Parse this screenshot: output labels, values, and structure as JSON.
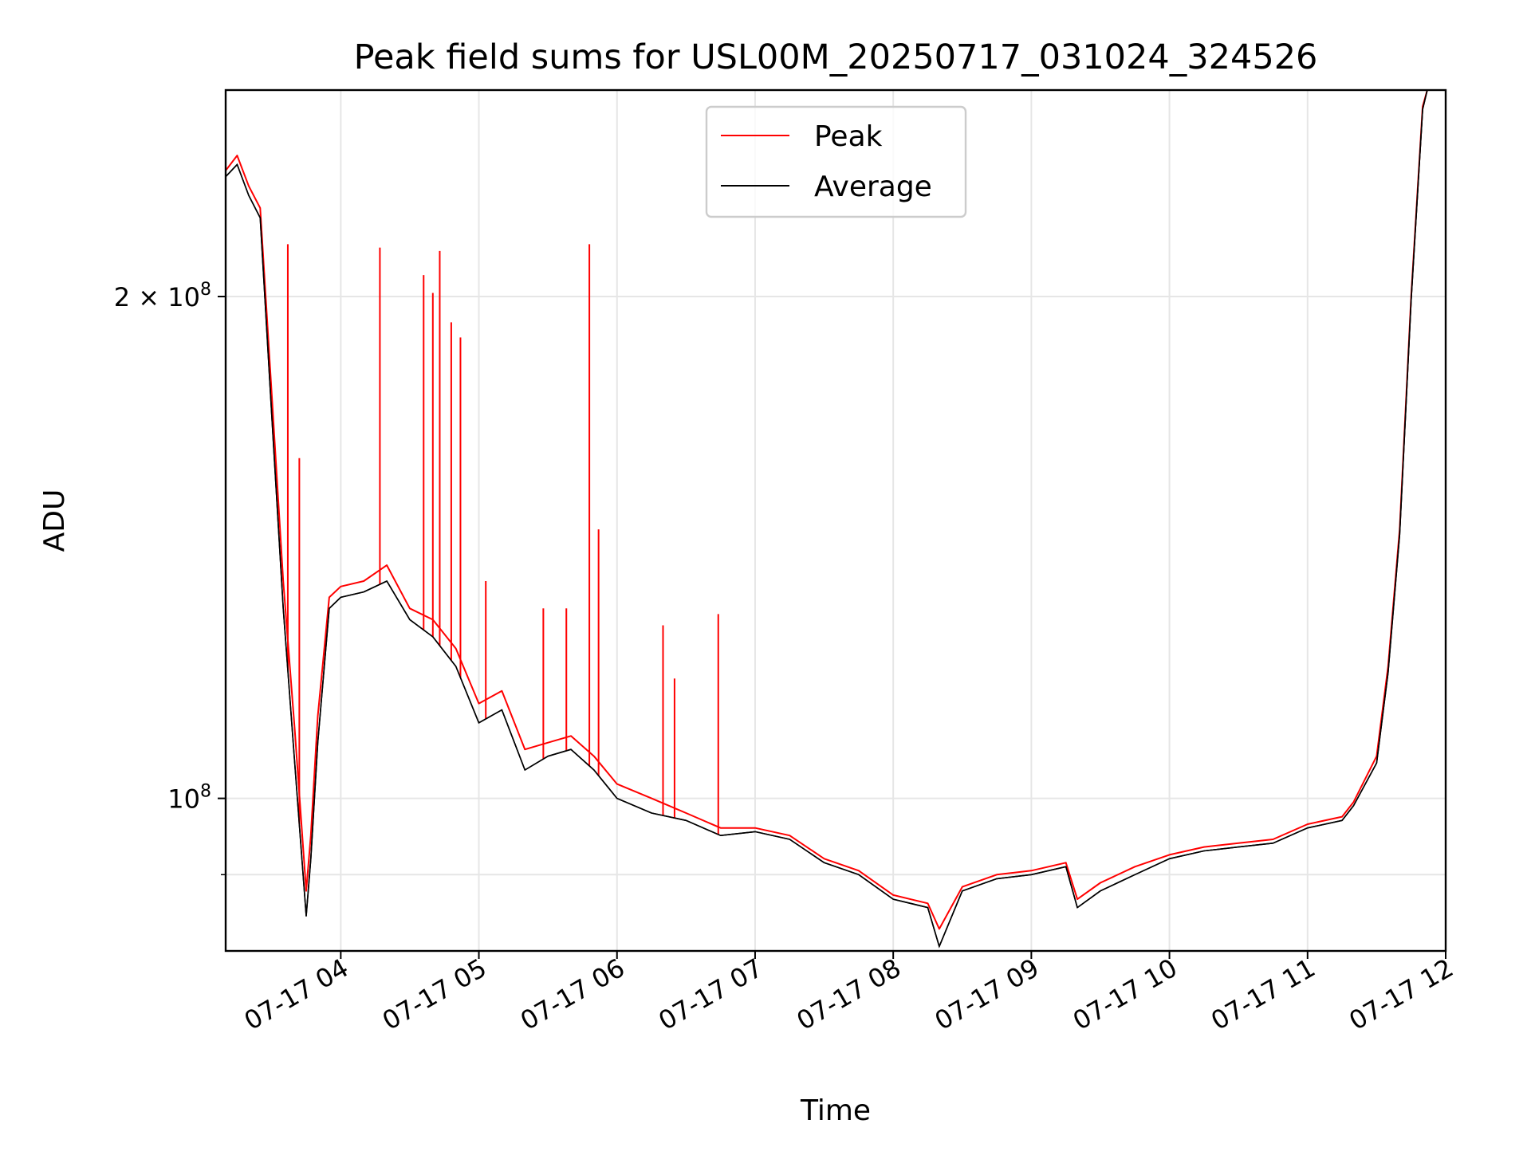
{
  "chart_data": {
    "type": "line",
    "title": "Peak field sums for USL00M_20250717_031024_324526",
    "xlabel": "Time",
    "ylabel": "ADU",
    "yscale": "log",
    "xlim": [
      "07-17 03:10",
      "07-17 12:00"
    ],
    "ylim": [
      81000000,
      266000000
    ],
    "grid": true,
    "legend_position": "top-center",
    "x_ticks": [
      "07-17 04",
      "07-17 05",
      "07-17 06",
      "07-17 07",
      "07-17 08",
      "07-17 09",
      "07-17 10",
      "07-17 11",
      "07-17 12"
    ],
    "y_ticks": [
      {
        "value": 200000000,
        "label": "2 × 10",
        "exp": "8"
      },
      {
        "value": 100000000,
        "label": "10",
        "exp": "8"
      }
    ],
    "y_minor_ticks": [
      90000000
    ],
    "colors": {
      "peak": "#ff0000",
      "average": "#000000",
      "grid": "#e6e6e6"
    },
    "series": [
      {
        "name": "Peak",
        "color": "#ff0000",
        "x": [
          "07-17 03:10",
          "07-17 03:15",
          "07-17 03:20",
          "07-17 03:25",
          "07-17 03:30",
          "07-17 03:35",
          "07-17 03:40",
          "07-17 03:45",
          "07-17 03:47",
          "07-17 03:50",
          "07-17 03:55",
          "07-17 04:00",
          "07-17 04:10",
          "07-17 04:20",
          "07-17 04:30",
          "07-17 04:40",
          "07-17 04:50",
          "07-17 05:00",
          "07-17 05:10",
          "07-17 05:20",
          "07-17 05:30",
          "07-17 05:40",
          "07-17 05:50",
          "07-17 06:00",
          "07-17 06:15",
          "07-17 06:30",
          "07-17 06:45",
          "07-17 07:00",
          "07-17 07:15",
          "07-17 07:30",
          "07-17 07:45",
          "07-17 08:00",
          "07-17 08:15",
          "07-17 08:20",
          "07-17 08:30",
          "07-17 08:45",
          "07-17 09:00",
          "07-17 09:15",
          "07-17 09:20",
          "07-17 09:30",
          "07-17 09:45",
          "07-17 10:00",
          "07-17 10:15",
          "07-17 10:30",
          "07-17 10:45",
          "07-17 11:00",
          "07-17 11:15",
          "07-17 11:20",
          "07-17 11:30",
          "07-17 11:35",
          "07-17 11:40",
          "07-17 11:45",
          "07-17 11:50",
          "07-17 11:52"
        ],
        "y": [
          238000000,
          243000000,
          233000000,
          226000000,
          175000000,
          135000000,
          110000000,
          88000000,
          95000000,
          112000000,
          132000000,
          134000000,
          135000000,
          138000000,
          130000000,
          128000000,
          123000000,
          114000000,
          116000000,
          107000000,
          108000000,
          109000000,
          106000000,
          102000000,
          100000000,
          98000000,
          96000000,
          96000000,
          95000000,
          92000000,
          90500000,
          87500000,
          86500000,
          83500000,
          88500000,
          90000000,
          90500000,
          91500000,
          87000000,
          89000000,
          91000000,
          92500000,
          93500000,
          94000000,
          94500000,
          96500000,
          97500000,
          99500000,
          106000000,
          120000000,
          145000000,
          200000000,
          260000000,
          266000000
        ],
        "spikes": [
          {
            "x": "07-17 03:37",
            "y": 215000000
          },
          {
            "x": "07-17 03:42",
            "y": 160000000
          },
          {
            "x": "07-17 04:17",
            "y": 214000000
          },
          {
            "x": "07-17 04:36",
            "y": 206000000
          },
          {
            "x": "07-17 04:40",
            "y": 201000000
          },
          {
            "x": "07-17 04:43",
            "y": 213000000
          },
          {
            "x": "07-17 04:48",
            "y": 193000000
          },
          {
            "x": "07-17 04:52",
            "y": 189000000
          },
          {
            "x": "07-17 05:03",
            "y": 135000000
          },
          {
            "x": "07-17 05:28",
            "y": 130000000
          },
          {
            "x": "07-17 05:38",
            "y": 130000000
          },
          {
            "x": "07-17 05:48",
            "y": 215000000
          },
          {
            "x": "07-17 05:52",
            "y": 145000000
          },
          {
            "x": "07-17 06:20",
            "y": 127000000
          },
          {
            "x": "07-17 06:25",
            "y": 118000000
          },
          {
            "x": "07-17 06:44",
            "y": 129000000
          }
        ]
      },
      {
        "name": "Average",
        "color": "#000000",
        "x": [
          "07-17 03:10",
          "07-17 03:15",
          "07-17 03:20",
          "07-17 03:25",
          "07-17 03:30",
          "07-17 03:35",
          "07-17 03:40",
          "07-17 03:45",
          "07-17 03:47",
          "07-17 03:50",
          "07-17 03:55",
          "07-17 04:00",
          "07-17 04:10",
          "07-17 04:20",
          "07-17 04:30",
          "07-17 04:40",
          "07-17 04:50",
          "07-17 05:00",
          "07-17 05:10",
          "07-17 05:20",
          "07-17 05:30",
          "07-17 05:40",
          "07-17 05:50",
          "07-17 06:00",
          "07-17 06:15",
          "07-17 06:30",
          "07-17 06:45",
          "07-17 07:00",
          "07-17 07:15",
          "07-17 07:30",
          "07-17 07:45",
          "07-17 08:00",
          "07-17 08:15",
          "07-17 08:20",
          "07-17 08:30",
          "07-17 08:45",
          "07-17 09:00",
          "07-17 09:15",
          "07-17 09:20",
          "07-17 09:30",
          "07-17 09:45",
          "07-17 10:00",
          "07-17 10:15",
          "07-17 10:30",
          "07-17 10:45",
          "07-17 11:00",
          "07-17 11:15",
          "07-17 11:20",
          "07-17 11:30",
          "07-17 11:35",
          "07-17 11:40",
          "07-17 11:45",
          "07-17 11:50",
          "07-17 11:52"
        ],
        "y": [
          236000000,
          240000000,
          230000000,
          223000000,
          170000000,
          130000000,
          105000000,
          85000000,
          92000000,
          108000000,
          130000000,
          132000000,
          133000000,
          135000000,
          128000000,
          125000000,
          120000000,
          111000000,
          113000000,
          104000000,
          106000000,
          107000000,
          104000000,
          100000000,
          98000000,
          97000000,
          95000000,
          95500000,
          94500000,
          91500000,
          90000000,
          87000000,
          86000000,
          81500000,
          88000000,
          89500000,
          90000000,
          91000000,
          86000000,
          88000000,
          90000000,
          92000000,
          93000000,
          93500000,
          94000000,
          96000000,
          97000000,
          99000000,
          105000000,
          119000000,
          144000000,
          199000000,
          259000000,
          266000000
        ]
      }
    ]
  }
}
